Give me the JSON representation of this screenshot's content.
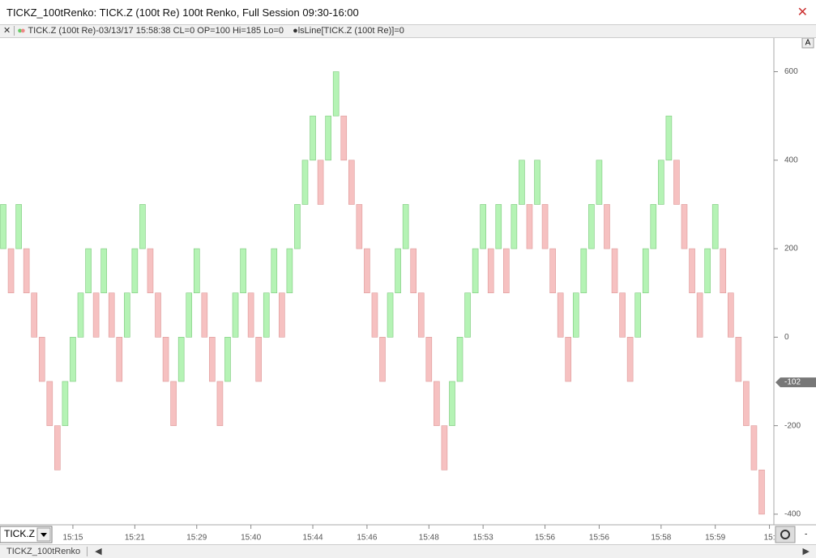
{
  "window": {
    "title": "TICKZ_100tRenko: TICK.Z (100t Re) 100t Renko, Full Session 09:30-16:00",
    "info": "TICK.Z (100t Re)-03/13/17 15:58:38 CL=0 OP=100 Hi=185 Lo=0",
    "indicator": "lsLine[TICK.Z (100t Re)]=0",
    "auto_button": "A",
    "symbol": "TICK.Z",
    "tab": "TICKZ_100tRenko"
  },
  "chart_data": {
    "type": "renko",
    "up_color": "#b5f3b5",
    "down_color": "#f6c1c1",
    "open": [
      200,
      200,
      200,
      200,
      100,
      0,
      -100,
      -200,
      -200,
      -100,
      0,
      100,
      100,
      100,
      100,
      0,
      0,
      100,
      200,
      200,
      100,
      0,
      -100,
      -100,
      0,
      100,
      100,
      0,
      -100,
      -100,
      0,
      100,
      100,
      0,
      0,
      100,
      100,
      100,
      200,
      300,
      400,
      400,
      400,
      500,
      500,
      400,
      300,
      200,
      100,
      0,
      0,
      100,
      200,
      200,
      100,
      0,
      -100,
      -200,
      -200,
      -100,
      0,
      100,
      200,
      200,
      200,
      200,
      200,
      300,
      300,
      300,
      300,
      200,
      100,
      0,
      0,
      100,
      200,
      300,
      300,
      200,
      100,
      0,
      0,
      100,
      200,
      300,
      400,
      400,
      300,
      200,
      100,
      100,
      200,
      200,
      100,
      0,
      -100,
      -200,
      -300
    ],
    "close": [
      300,
      100,
      300,
      100,
      0,
      -100,
      -200,
      -300,
      -100,
      0,
      100,
      200,
      0,
      200,
      0,
      -100,
      100,
      200,
      300,
      100,
      0,
      -100,
      -200,
      0,
      100,
      200,
      0,
      -100,
      -200,
      0,
      100,
      200,
      0,
      -100,
      100,
      200,
      0,
      200,
      300,
      400,
      500,
      300,
      500,
      600,
      400,
      300,
      200,
      100,
      0,
      -100,
      100,
      200,
      300,
      100,
      0,
      -100,
      -200,
      -300,
      -100,
      0,
      100,
      200,
      300,
      100,
      300,
      100,
      300,
      400,
      200,
      400,
      200,
      100,
      0,
      -100,
      100,
      200,
      300,
      400,
      200,
      100,
      0,
      -100,
      100,
      200,
      300,
      400,
      500,
      300,
      200,
      100,
      0,
      200,
      300,
      100,
      0,
      -100,
      -200,
      -300,
      -400
    ],
    "ylim": [
      -424,
      676
    ],
    "yticks": [
      -400,
      -200,
      0,
      200,
      400,
      600
    ],
    "xticks": [
      {
        "value": 9,
        "label": "15:15"
      },
      {
        "value": 17,
        "label": "15:21"
      },
      {
        "value": 25,
        "label": "15:29"
      },
      {
        "value": 32,
        "label": "15:40"
      },
      {
        "value": 40,
        "label": "15:44"
      },
      {
        "value": 47,
        "label": "15:46"
      },
      {
        "value": 55,
        "label": "15:48"
      },
      {
        "value": 62,
        "label": "15:53"
      },
      {
        "value": 70,
        "label": "15:56"
      },
      {
        "value": 77,
        "label": "15:56"
      },
      {
        "value": 85,
        "label": "15:58"
      },
      {
        "value": 92,
        "label": "15:59"
      },
      {
        "value": 99,
        "label": "15:"
      }
    ],
    "last_value": -102
  }
}
